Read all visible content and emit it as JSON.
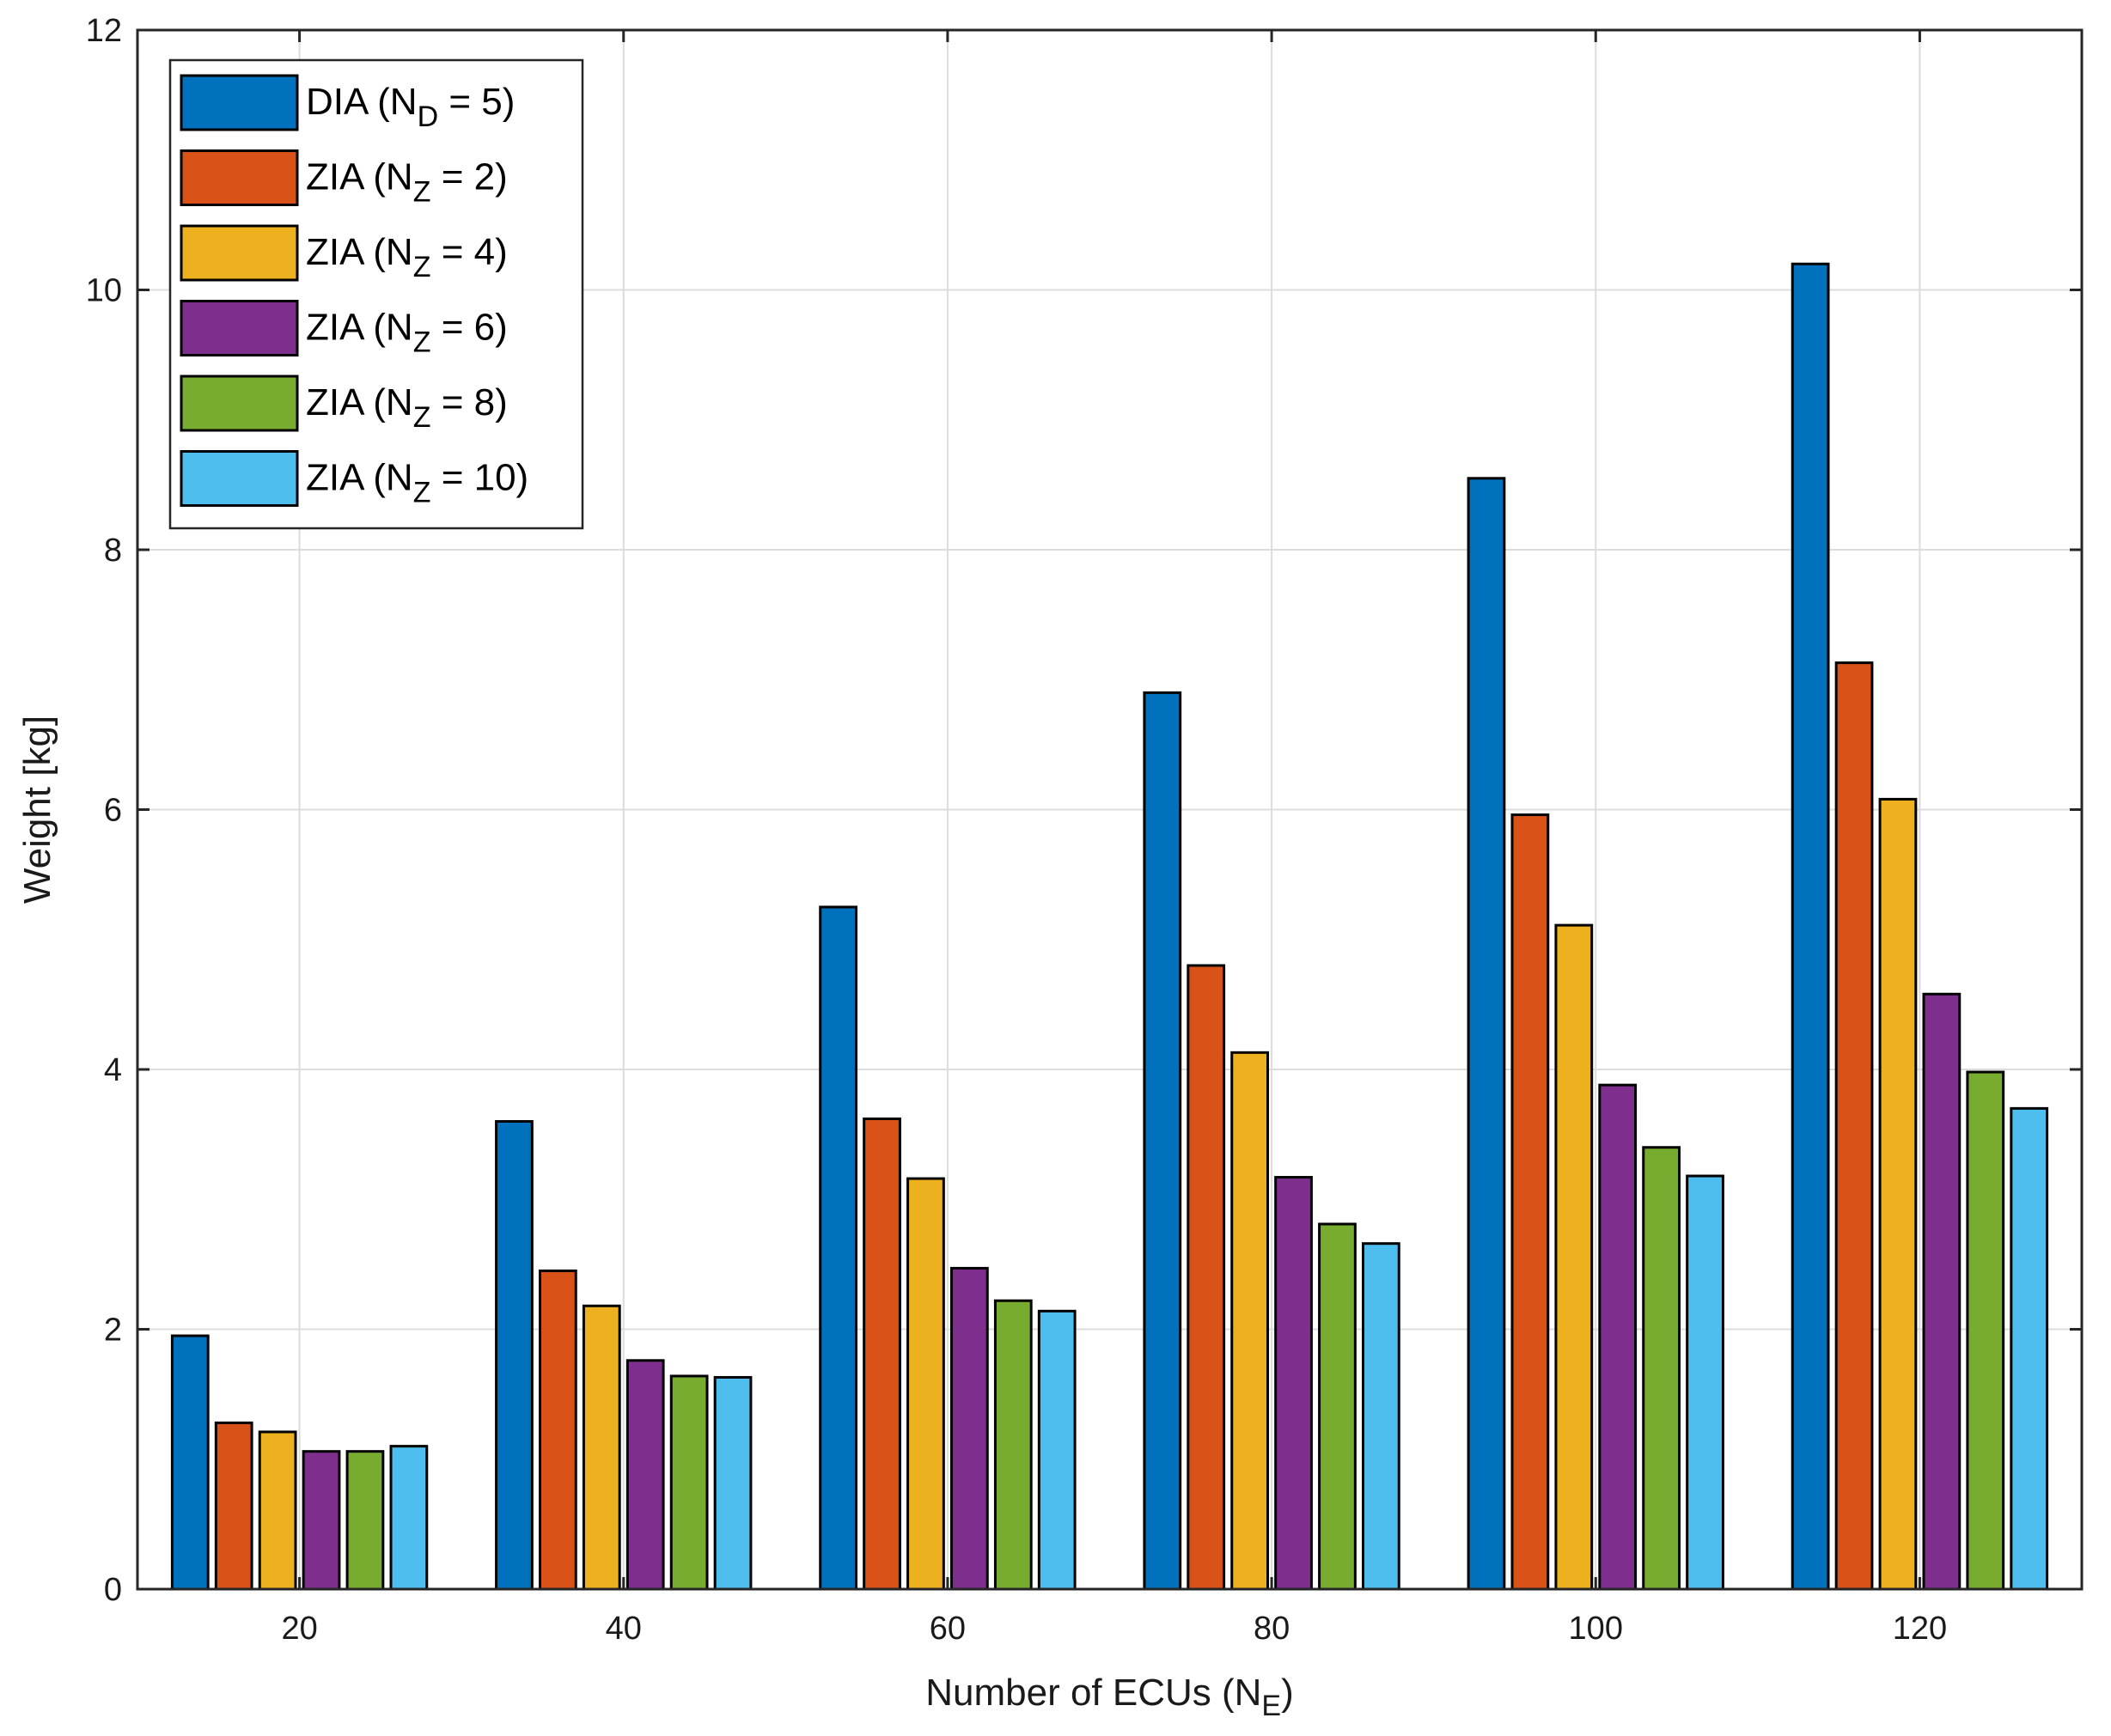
{
  "chart_data": {
    "type": "bar",
    "title": "",
    "xlabel": {
      "main": "Number of ECUs (N",
      "sub": "E",
      "close": ")"
    },
    "ylabel": "Weight [kg]",
    "ylim": [
      0,
      12
    ],
    "yticks": [
      0,
      2,
      4,
      6,
      8,
      10,
      12
    ],
    "grid": true,
    "legend_position": "top-left",
    "categories": [
      "20",
      "40",
      "60",
      "80",
      "100",
      "120"
    ],
    "series": [
      {
        "name": "DIA (N_D = 5)",
        "prefix": "DIA (N",
        "sub": "D",
        "suffix": " = 5)",
        "color": "#0072BD",
        "values": [
          1.95,
          3.6,
          5.25,
          6.9,
          8.55,
          10.2
        ]
      },
      {
        "name": "ZIA (N_Z = 2)",
        "prefix": "ZIA (N",
        "sub": "Z",
        "suffix": " = 2)",
        "color": "#D95319",
        "values": [
          1.28,
          2.45,
          3.62,
          4.8,
          5.96,
          7.13
        ]
      },
      {
        "name": "ZIA (N_Z = 4)",
        "prefix": "ZIA (N",
        "sub": "Z",
        "suffix": " = 4)",
        "color": "#EDB120",
        "values": [
          1.21,
          2.18,
          3.16,
          4.13,
          5.11,
          6.08
        ]
      },
      {
        "name": "ZIA (N_Z = 6)",
        "prefix": "ZIA (N",
        "sub": "Z",
        "suffix": " = 6)",
        "color": "#7E2F8E",
        "values": [
          1.06,
          1.76,
          2.47,
          3.17,
          3.88,
          4.58
        ]
      },
      {
        "name": "ZIA (N_Z = 8)",
        "prefix": "ZIA (N",
        "sub": "Z",
        "suffix": " = 8)",
        "color": "#77AC30",
        "values": [
          1.06,
          1.64,
          2.22,
          2.81,
          3.4,
          3.98
        ]
      },
      {
        "name": "ZIA (N_Z = 10)",
        "prefix": "ZIA (N",
        "sub": "Z",
        "suffix": " = 10)",
        "color": "#4DBEEE",
        "values": [
          1.1,
          1.63,
          2.14,
          2.66,
          3.18,
          3.7
        ]
      }
    ]
  }
}
